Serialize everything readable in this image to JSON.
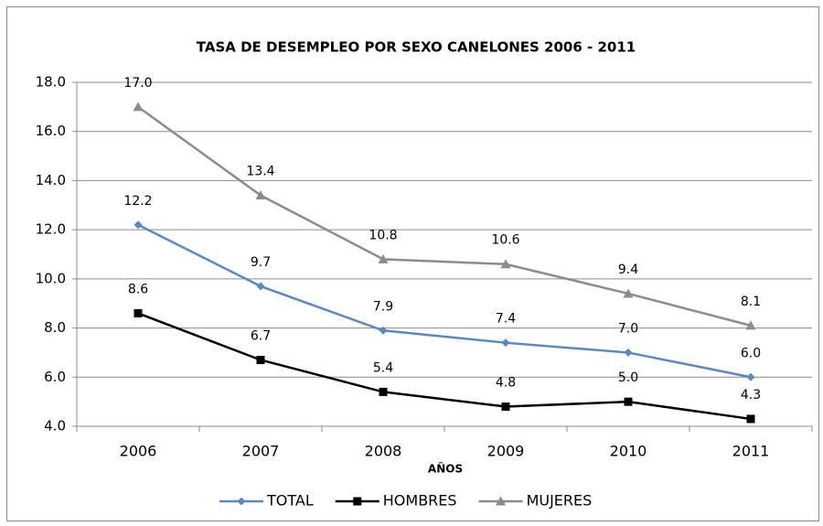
{
  "chart_data": {
    "type": "line",
    "title": "TASA DE DESEMPLEO POR SEXO CANELONES 2006 - 2011",
    "x_label": "AÑOS",
    "categories": [
      "2006",
      "2007",
      "2008",
      "2009",
      "2010",
      "2011"
    ],
    "series": [
      {
        "name": "TOTAL",
        "color": "#5b87c5",
        "marker": "diamond",
        "values": [
          12.2,
          9.7,
          7.9,
          7.4,
          7,
          6
        ],
        "value_labels": [
          "12.2",
          "9.7",
          "7.9",
          "7.4",
          "7.0",
          "6.0"
        ]
      },
      {
        "name": "HOMBRES",
        "color": "#000000",
        "marker": "square",
        "values": [
          8.6,
          6.7,
          5.4,
          4.8,
          5,
          4.3
        ],
        "value_labels": [
          "8.6",
          "6.7",
          "5.4",
          "4.8",
          "5.0",
          "4.3"
        ]
      },
      {
        "name": "MUJERES",
        "color": "#8c8c8c",
        "marker": "triangle",
        "values": [
          17,
          13.4,
          10.8,
          10.6,
          9.4,
          8.1
        ],
        "value_labels": [
          "17.0",
          "13.4",
          "10.8",
          "10.6",
          "9.4",
          "8.1"
        ]
      }
    ],
    "ylim": [
      4,
      18
    ],
    "yticks": [
      {
        "value": 4,
        "label": "4.0"
      },
      {
        "value": 6,
        "label": "6.0"
      },
      {
        "value": 8,
        "label": "8.0"
      },
      {
        "value": 10,
        "label": "10.0"
      },
      {
        "value": 12,
        "label": "12.0"
      },
      {
        "value": 14,
        "label": "14.0"
      },
      {
        "value": 16,
        "label": "16.0"
      },
      {
        "value": 18,
        "label": "18.0"
      }
    ],
    "grid": true,
    "legend": "bottom"
  }
}
